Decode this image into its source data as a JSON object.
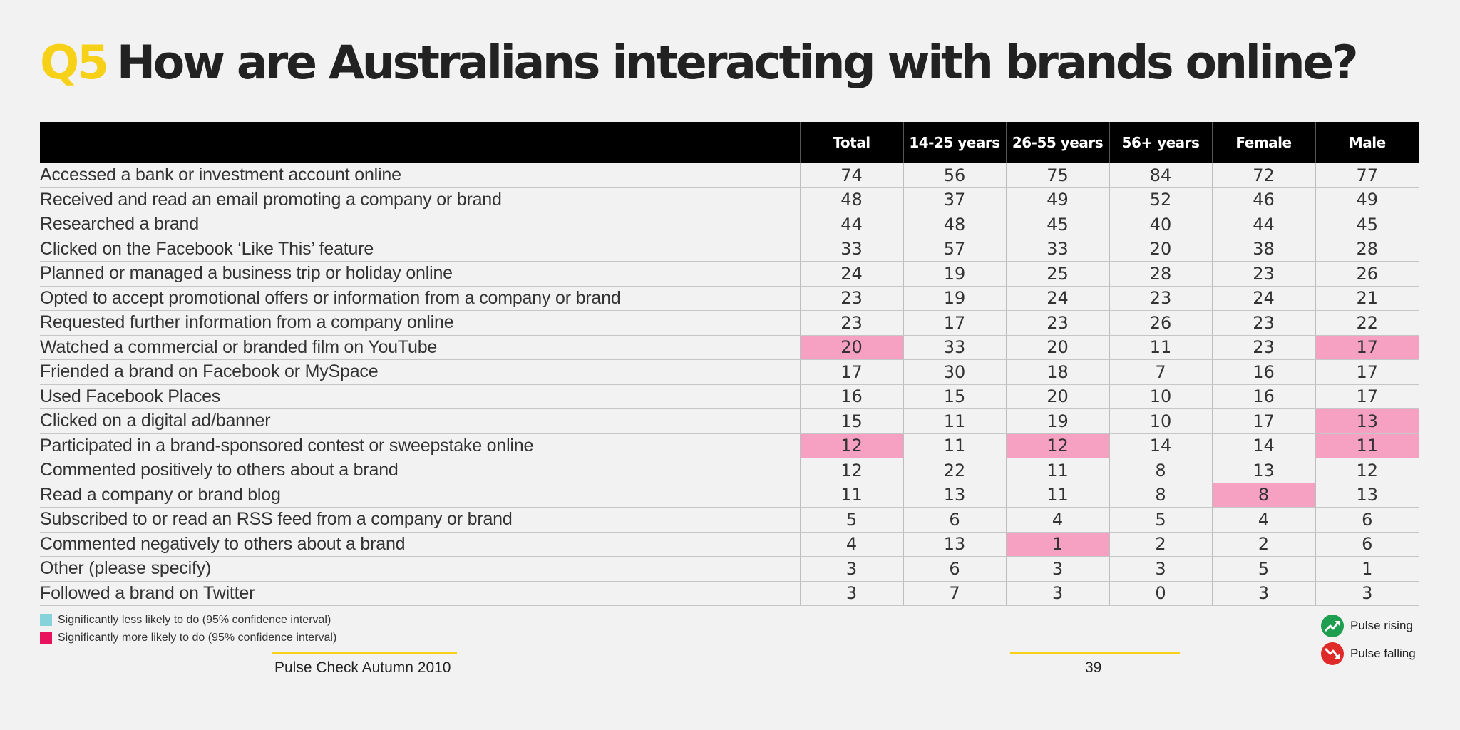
{
  "page": {
    "title_prefix": "Q5",
    "title": "How are Australians interacting with brands online?"
  },
  "table": {
    "headers": [
      "",
      "Total",
      "14-25 years",
      "26-55 years",
      "56+ years",
      "Female",
      "Male"
    ],
    "rows": [
      {
        "label": "Accessed a bank or investment account online",
        "values": [
          "74",
          "56",
          "75",
          "84",
          "72",
          "77"
        ],
        "highlight": []
      },
      {
        "label": "Received and read an email promoting a company or brand",
        "values": [
          "48",
          "37",
          "49",
          "52",
          "46",
          "49"
        ],
        "highlight": []
      },
      {
        "label": "Researched a brand",
        "values": [
          "44",
          "48",
          "45",
          "40",
          "44",
          "45"
        ],
        "highlight": []
      },
      {
        "label": "Clicked on the Facebook ‘Like This’ feature",
        "values": [
          "33",
          "57",
          "33",
          "20",
          "38",
          "28"
        ],
        "highlight": []
      },
      {
        "label": "Planned or managed a business trip or holiday online",
        "values": [
          "24",
          "19",
          "25",
          "28",
          "23",
          "26"
        ],
        "highlight": []
      },
      {
        "label": "Opted to accept promotional offers or information from a company or brand",
        "values": [
          "23",
          "19",
          "24",
          "23",
          "24",
          "21"
        ],
        "highlight": []
      },
      {
        "label": "Requested further information from a company online",
        "values": [
          "23",
          "17",
          "23",
          "26",
          "23",
          "22"
        ],
        "highlight": []
      },
      {
        "label": "Watched a commercial or branded film on YouTube",
        "values": [
          "20",
          "33",
          "20",
          "11",
          "23",
          "17"
        ],
        "highlight": [
          0,
          5
        ]
      },
      {
        "label": "Friended a brand on Facebook or MySpace",
        "values": [
          "17",
          "30",
          "18",
          "7",
          "16",
          "17"
        ],
        "highlight": []
      },
      {
        "label": "Used Facebook Places",
        "values": [
          "16",
          "15",
          "20",
          "10",
          "16",
          "17"
        ],
        "highlight": []
      },
      {
        "label": "Clicked on a digital ad/banner",
        "values": [
          "15",
          "11",
          "19",
          "10",
          "17",
          "13"
        ],
        "highlight": [
          5
        ]
      },
      {
        "label": "Participated in a brand-sponsored contest or sweepstake online",
        "values": [
          "12",
          "11",
          "12",
          "14",
          "14",
          "11"
        ],
        "highlight": [
          0,
          2,
          5
        ]
      },
      {
        "label": "Commented positively to others about a brand",
        "values": [
          "12",
          "22",
          "11",
          "8",
          "13",
          "12"
        ],
        "highlight": []
      },
      {
        "label": "Read a company or brand blog",
        "values": [
          "11",
          "13",
          "11",
          "8",
          "8",
          "13"
        ],
        "highlight": [
          4
        ]
      },
      {
        "label": "Subscribed to or read an RSS feed from a company or brand",
        "values": [
          "5",
          "6",
          "4",
          "5",
          "4",
          "6"
        ],
        "highlight": []
      },
      {
        "label": "Commented negatively to others about a brand",
        "values": [
          "4",
          "13",
          "1",
          "2",
          "2",
          "6"
        ],
        "highlight": [
          2
        ]
      },
      {
        "label": "Other (please specify)",
        "values": [
          "3",
          "6",
          "3",
          "3",
          "5",
          "1"
        ],
        "highlight": []
      },
      {
        "label": "Followed a brand on Twitter",
        "values": [
          "3",
          "7",
          "3",
          "0",
          "3",
          "3"
        ],
        "highlight": []
      }
    ],
    "highlight_color": "#f7a1c2"
  },
  "legend": {
    "less": {
      "label": "Significantly less likely to do (95% confidence interval)",
      "color": "#86d3dc"
    },
    "more": {
      "label": "Significantly more likely to do (95% confidence interval)",
      "color": "#e8115b"
    }
  },
  "pulse": {
    "rising": {
      "label": "Pulse rising",
      "color": "#1e9e4f",
      "icon": "pulse-rising-icon"
    },
    "falling": {
      "label": "Pulse falling",
      "color": "#e02a2a",
      "icon": "pulse-falling-icon"
    }
  },
  "footer": {
    "publication": "Pulse Check Autumn 2010",
    "page_number": "39"
  }
}
